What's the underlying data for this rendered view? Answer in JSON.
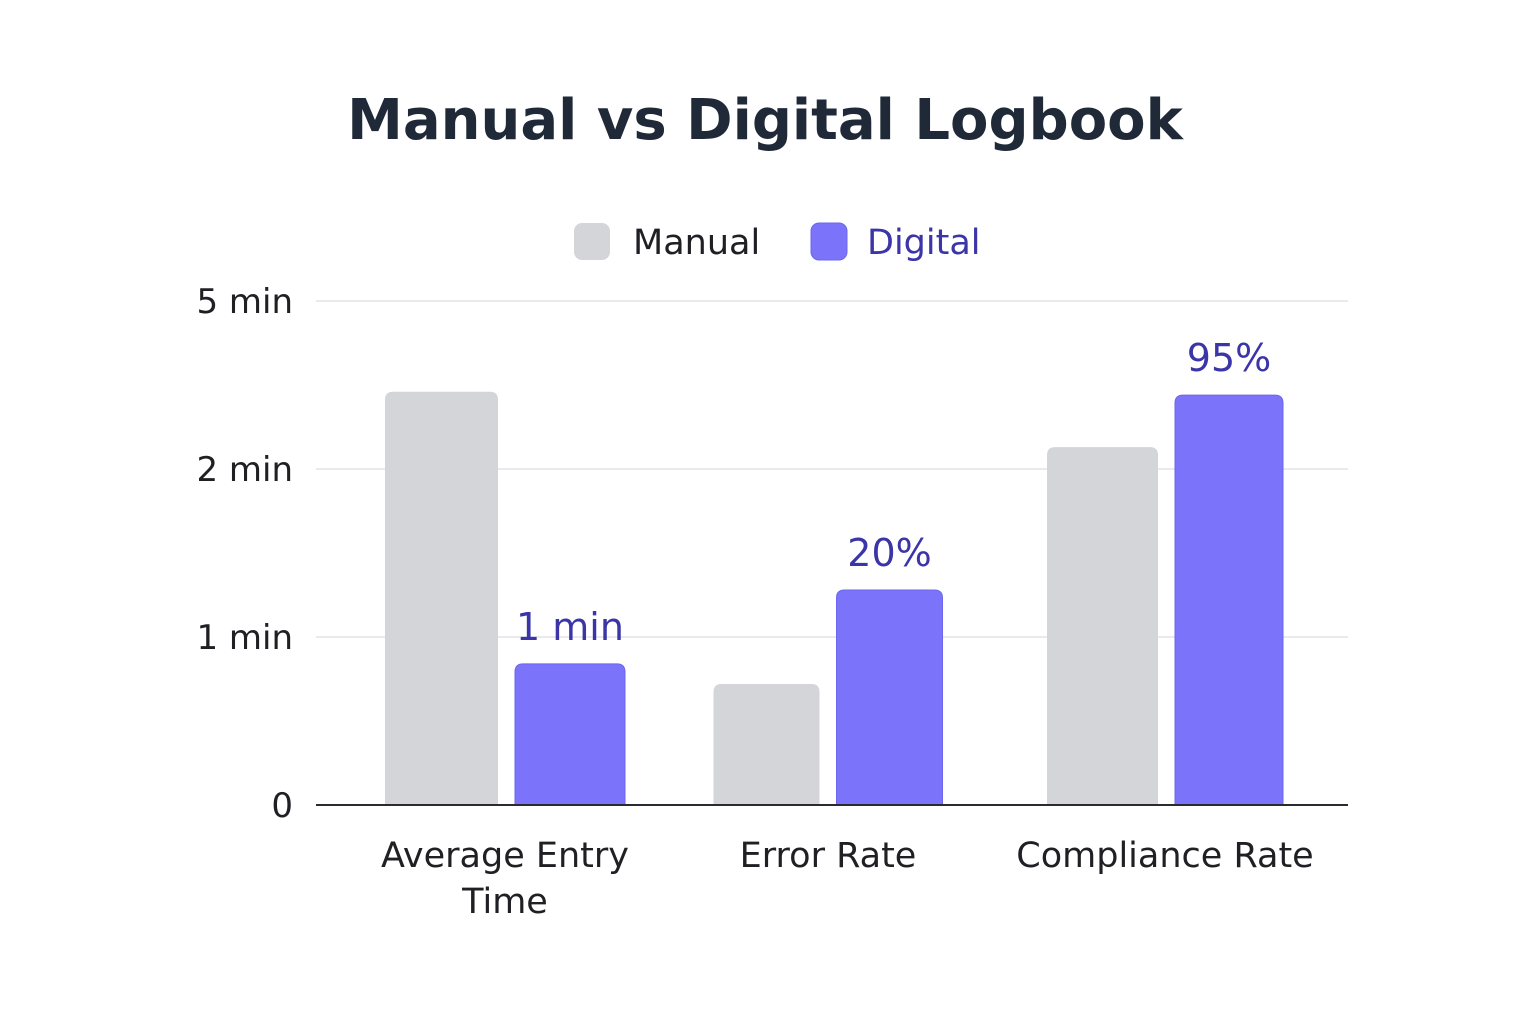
{
  "chart_data": {
    "type": "bar",
    "title": "Manual vs Digital Logbook",
    "xlabel": "",
    "ylabel": "",
    "categories": [
      "Average Entry Time",
      "Error Rate",
      "Compliance Rate"
    ],
    "category_lines": [
      [
        "Average Entry",
        "Time"
      ],
      [
        "Error Rate"
      ],
      [
        "Compliance Rate"
      ]
    ],
    "y_ticks": [
      {
        "label": "0",
        "level": 0
      },
      {
        "label": "1 min",
        "level": 1
      },
      {
        "label": "2 min",
        "level": 2
      },
      {
        "label": "5 min",
        "level": 3
      }
    ],
    "ylim": [
      0,
      3
    ],
    "grid": true,
    "legend_position": "top-center",
    "series": [
      {
        "name": "Manual",
        "color": "#d4d5d8",
        "label_color": "#1f1f24",
        "values": [
          2.46,
          0.72,
          2.13
        ],
        "labels": [
          "",
          "",
          ""
        ]
      },
      {
        "name": "Digital",
        "color": "#7b74fb",
        "label_color": "#3b35a8",
        "values": [
          0.84,
          1.28,
          2.44
        ],
        "labels": [
          "1 min",
          "20%",
          "95%"
        ]
      }
    ]
  }
}
